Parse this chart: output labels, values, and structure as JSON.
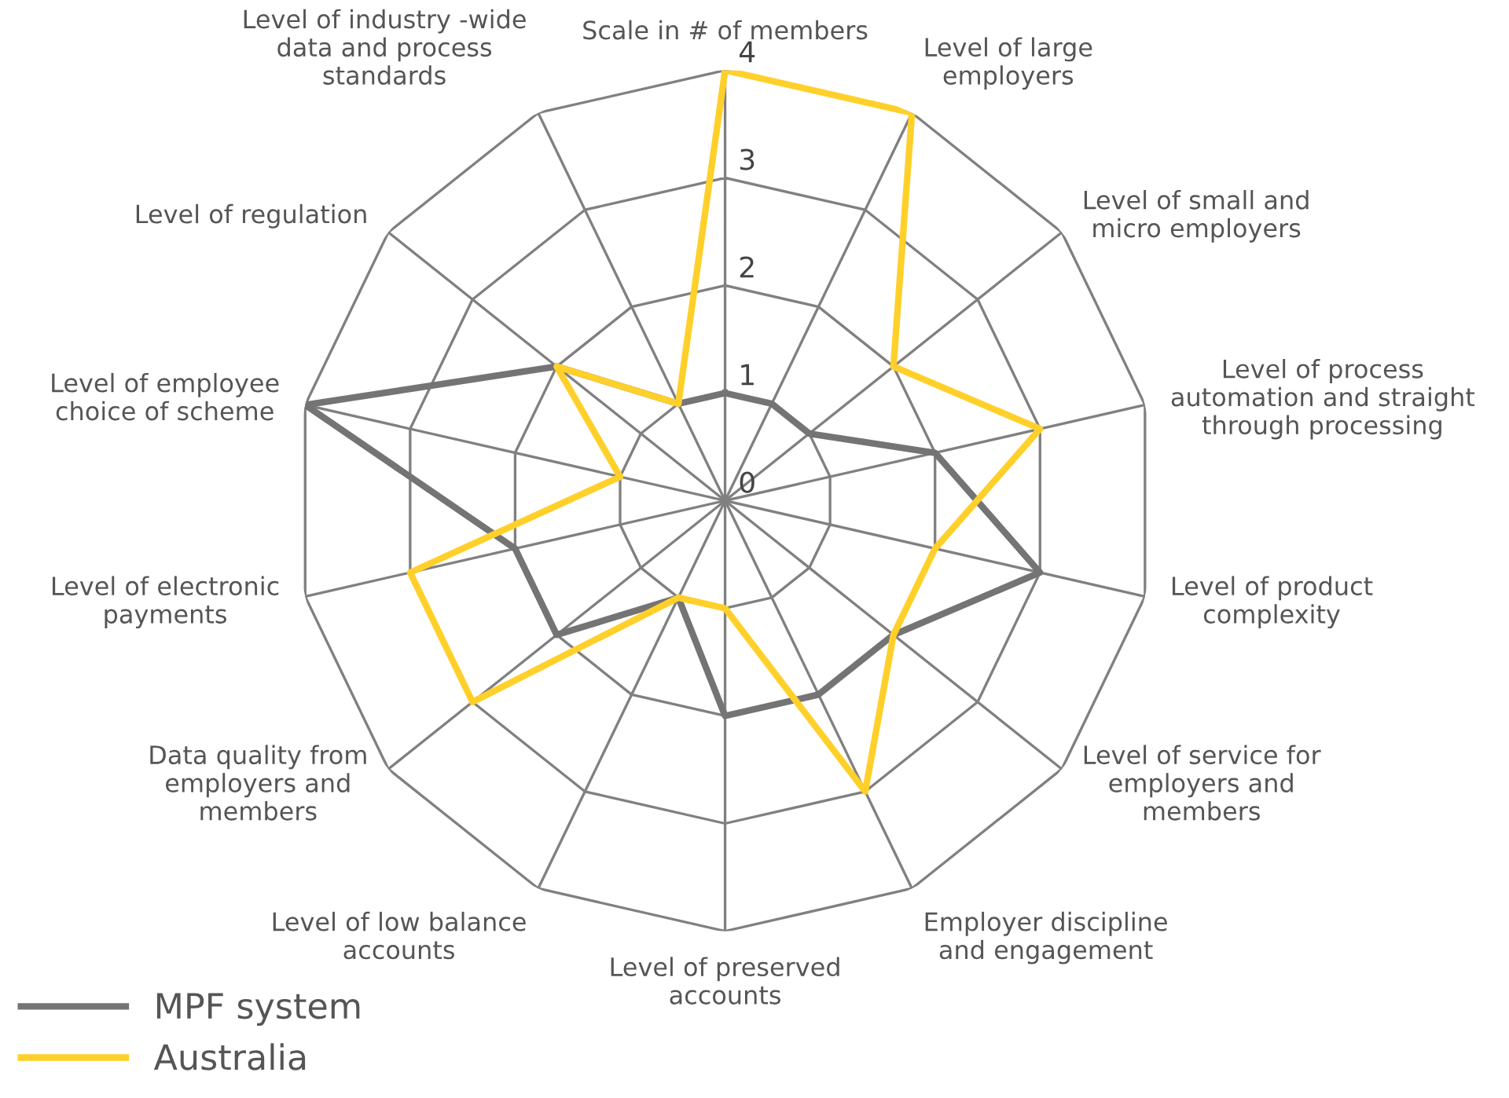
{
  "chart_data": {
    "type": "radar",
    "categories": [
      "Scale in # of members",
      "Level of large\nemployers",
      "Level of small and\nmicro employers",
      "Level of process\nautomation and straight\nthrough processing",
      "Level of product\ncomplexity",
      "Level of service for\nemployers and\nmembers",
      "Employer discipline\nand engagement",
      "Level of preserved\naccounts",
      "Level of low balance\naccounts",
      "Data quality from\nemployers and\nmembers",
      "Level of electronic\npayments",
      "Level of employee\nchoice of scheme",
      "Level of regulation",
      "Level of industry -wide\ndata and process\nstandards"
    ],
    "series": [
      {
        "name": "MPF system",
        "color": "#747474",
        "values": [
          1,
          1,
          1,
          2,
          3,
          2,
          2,
          2,
          1,
          2,
          2,
          4,
          2,
          1
        ]
      },
      {
        "name": "Australia",
        "color": "#ffd02a",
        "values": [
          4,
          4,
          2,
          3,
          2,
          2,
          3,
          1,
          1,
          3,
          3,
          1,
          2,
          1
        ]
      }
    ],
    "ylim": [
      0,
      4
    ],
    "yticks": [
      0,
      1,
      2,
      3,
      4
    ],
    "grid": true,
    "legend": "bottom left",
    "marker": "none",
    "line_style": "solid"
  }
}
